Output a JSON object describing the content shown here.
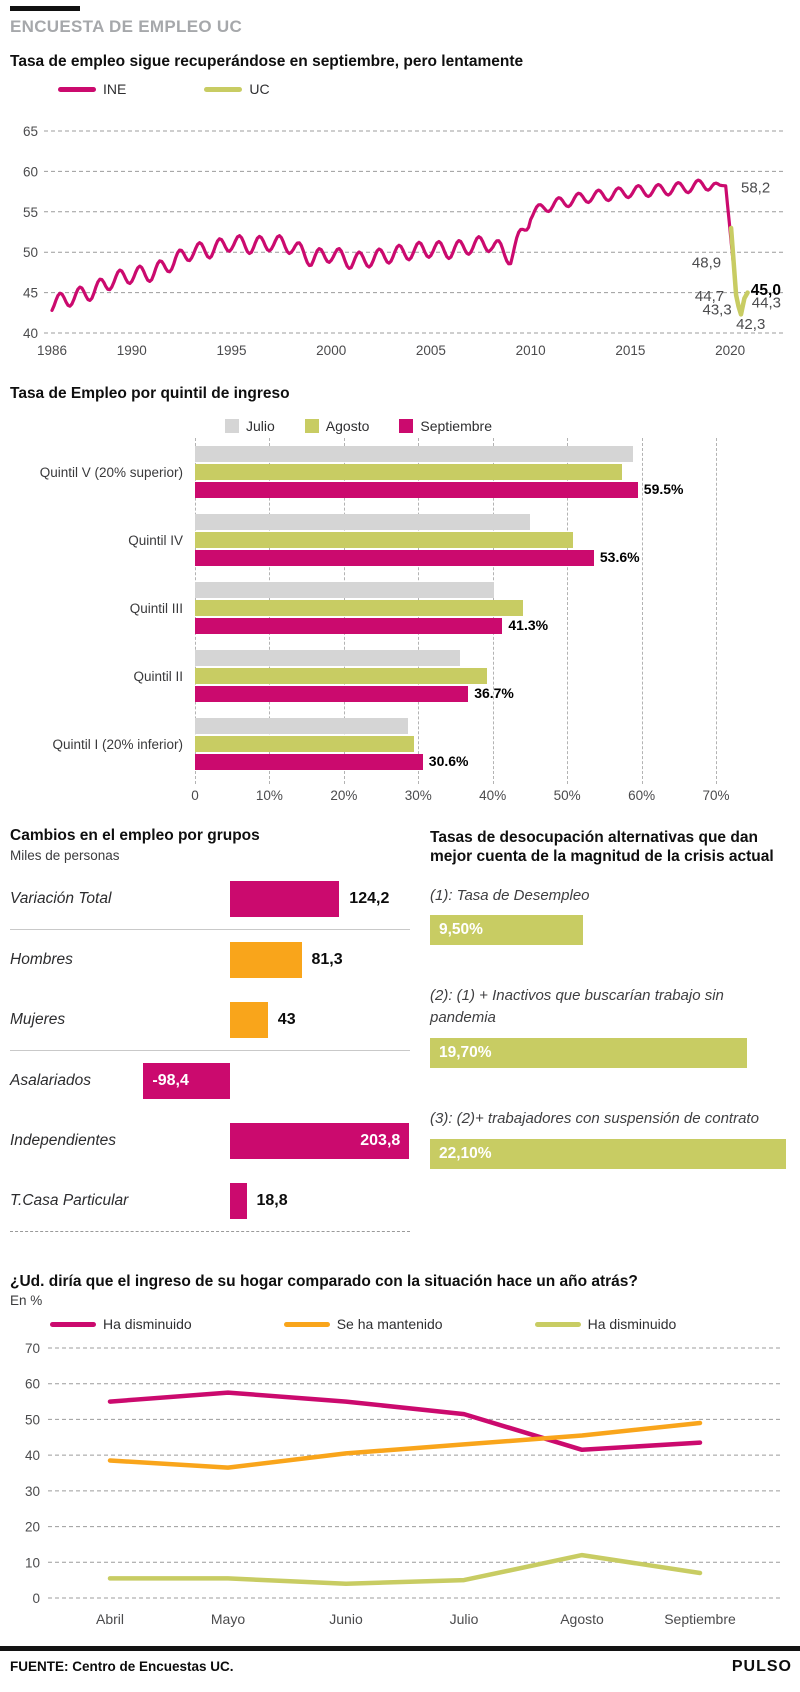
{
  "header": {
    "kicker": "ENCUESTA DE EMPLEO UC"
  },
  "footer": {
    "source": "FUENTE: Centro de Encuestas UC.",
    "brand": "PULSO"
  },
  "colors": {
    "magenta": "#cb0a6e",
    "olive": "#c8cc63",
    "orange": "#f9a51b",
    "gray": "#d5d5d5",
    "kicker": "#a6a8ab",
    "axis": "#4b4b4d",
    "grid": "#9c9c9c",
    "footer_bar": "#131313"
  },
  "chart_data": [
    {
      "id": "employment_rate",
      "type": "line",
      "title": "Tasa de empleo sigue recuperándose en septiembre, pero lentamente",
      "legend": [
        {
          "label": "INE",
          "color": "magenta"
        },
        {
          "label": "UC",
          "color": "olive"
        }
      ],
      "ylim": [
        40,
        65
      ],
      "y_ticks": [
        65,
        60,
        55,
        50,
        45,
        40
      ],
      "x_ticks": [
        1986,
        1990,
        1995,
        2000,
        2005,
        2010,
        2015,
        2020
      ],
      "grid": "dashed-horizontal",
      "seasonal_amplitude_note": "monthly series oscillates ~±1pt before 2010, ~±0.7pt after",
      "series": [
        {
          "name": "INE",
          "color": "magenta",
          "points": [
            [
              1986,
              43.6
            ],
            [
              1986.5,
              44.0
            ],
            [
              1987,
              44.4
            ],
            [
              1988,
              45.1
            ],
            [
              1989,
              46.5
            ],
            [
              1990,
              47.2
            ],
            [
              1991,
              47.4
            ],
            [
              1992,
              48.7
            ],
            [
              1993,
              50.1
            ],
            [
              1994,
              50.3
            ],
            [
              1995,
              51.2
            ],
            [
              1996,
              50.8
            ],
            [
              1997,
              51.2
            ],
            [
              1998,
              50.8
            ],
            [
              1999,
              49.2
            ],
            [
              2000,
              49.8
            ],
            [
              2001,
              48.9
            ],
            [
              2002,
              49.2
            ],
            [
              2003,
              49.7
            ],
            [
              2004,
              50.1
            ],
            [
              2005,
              50.4
            ],
            [
              2006,
              50.2
            ],
            [
              2007,
              50.8
            ],
            [
              2008,
              51.1
            ],
            [
              2009,
              49.4
            ],
            [
              2010,
              54.6
            ],
            [
              2010.7,
              55.6
            ],
            [
              2011,
              55.8
            ],
            [
              2012,
              56.4
            ],
            [
              2013,
              56.9
            ],
            [
              2014,
              57.1
            ],
            [
              2015,
              57.5
            ],
            [
              2016,
              57.6
            ],
            [
              2017,
              57.8
            ],
            [
              2018,
              58.1
            ],
            [
              2019,
              58.4
            ],
            [
              2019.78,
              58.2
            ],
            [
              2020.15,
              48.9
            ]
          ]
        },
        {
          "name": "UC",
          "color": "olive",
          "points": [
            [
              2020.05,
              53.0
            ],
            [
              2020.3,
              44.7
            ],
            [
              2020.42,
              43.3
            ],
            [
              2020.55,
              42.3
            ],
            [
              2020.72,
              44.3
            ],
            [
              2020.88,
              45.0
            ]
          ]
        }
      ],
      "annotations": [
        {
          "text": "58,2",
          "x": 2020.55,
          "y": 58.0,
          "anchor": "start",
          "bold": false
        },
        {
          "text": "48,9",
          "x": 2019.55,
          "y": 48.75,
          "anchor": "end",
          "bold": false
        },
        {
          "text": "45,0",
          "x": 2021.04,
          "y": 45.35,
          "anchor": "start",
          "bold": true
        },
        {
          "text": "44,7",
          "x": 2019.7,
          "y": 44.55,
          "anchor": "end",
          "bold": false
        },
        {
          "text": "44,3",
          "x": 2021.09,
          "y": 43.8,
          "anchor": "start",
          "bold": false
        },
        {
          "text": "43,3",
          "x": 2020.08,
          "y": 42.9,
          "anchor": "end",
          "bold": false
        },
        {
          "text": "42,3",
          "x": 2020.3,
          "y": 41.1,
          "anchor": "start",
          "bold": false
        }
      ]
    },
    {
      "id": "employment_by_quintile",
      "type": "bar",
      "orientation": "horizontal-grouped",
      "title": "Tasa de Empleo por quintil de ingreso",
      "categories": [
        "Quintil V (20% superior)",
        "Quintil IV",
        "Quintil III",
        "Quintil II",
        "Quintil I (20% inferior)"
      ],
      "series": [
        {
          "name": "Julio",
          "color": "gray",
          "values": [
            58.9,
            45.0,
            40.1,
            35.6,
            28.6
          ]
        },
        {
          "name": "Agosto",
          "color": "olive",
          "values": [
            57.4,
            50.8,
            44.0,
            39.2,
            29.4
          ]
        },
        {
          "name": "Septiembre",
          "color": "magenta",
          "values": [
            59.5,
            53.6,
            41.3,
            36.7,
            30.6
          ],
          "labels": [
            "59.5%",
            "53.6%",
            "41.3%",
            "36.7%",
            "30.6%"
          ]
        }
      ],
      "xlim": [
        0,
        70
      ],
      "x_tick_labels": [
        "0",
        "10%",
        "20%",
        "30%",
        "40%",
        "50%",
        "60%",
        "70%"
      ]
    },
    {
      "id": "employment_changes",
      "type": "bar",
      "orientation": "horizontal",
      "title": "Cambios en el empleo por grupos",
      "subtitle": "Miles de personas",
      "rows": [
        {
          "label": "Variación Total",
          "value": 124.2,
          "display": "124,2",
          "color": "magenta",
          "value_pos": "right"
        },
        {
          "label": "Hombres",
          "value": 81.3,
          "display": "81,3",
          "color": "orange",
          "value_pos": "right"
        },
        {
          "label": "Mujeres",
          "value": 43,
          "display": "43",
          "color": "orange",
          "value_pos": "right"
        },
        {
          "label": "Asalariados",
          "value": -98.4,
          "display": "-98,4",
          "color": "magenta",
          "value_pos": "inside-left"
        },
        {
          "label": "Independientes",
          "value": 203.8,
          "display": "203,8",
          "color": "magenta",
          "value_pos": "inside-right"
        },
        {
          "label": "T.Casa Particular",
          "value": 18.8,
          "display": "18,8",
          "color": "magenta",
          "value_pos": "right"
        }
      ]
    },
    {
      "id": "alternative_unemployment_rates",
      "type": "bar",
      "orientation": "horizontal",
      "title": "Tasas de desocupación alternativas que dan mejor cuenta de la magnitud de la crisis actual",
      "items": [
        {
          "label": "(1): Tasa de Desempleo",
          "value": 9.5,
          "display": "9,50%"
        },
        {
          "label": "(2): (1) + Inactivos que buscarían trabajo sin pandemia",
          "value": 19.7,
          "display": "19,70%"
        },
        {
          "label": "(3): (2)+ trabajadores con suspensión de contrato",
          "value": 22.1,
          "display": "22,10%"
        }
      ],
      "bar_color": "olive",
      "xmax": 22.1
    },
    {
      "id": "household_income_vs_year_ago",
      "type": "line",
      "title": "¿Ud. diría que el ingreso de su hogar comparado con la situación hace un año atrás?",
      "ylabel": "En %",
      "categories": [
        "Abril",
        "Mayo",
        "Junio",
        "Julio",
        "Agosto",
        "Septiembre"
      ],
      "ylim": [
        0,
        70
      ],
      "y_ticks": [
        70,
        60,
        50,
        40,
        30,
        20,
        10,
        0
      ],
      "grid": "dashed-horizontal",
      "series": [
        {
          "name": "Ha disminuido",
          "color": "magenta",
          "values": [
            55,
            57.5,
            55,
            51.5,
            41.5,
            43.5
          ]
        },
        {
          "name": "Se ha mantenido",
          "color": "orange",
          "values": [
            38.5,
            36.5,
            40.5,
            43,
            45.5,
            49
          ]
        },
        {
          "name": "Ha disminuido",
          "color": "olive",
          "values": [
            5.5,
            5.5,
            4,
            5,
            12,
            7
          ]
        }
      ]
    }
  ]
}
